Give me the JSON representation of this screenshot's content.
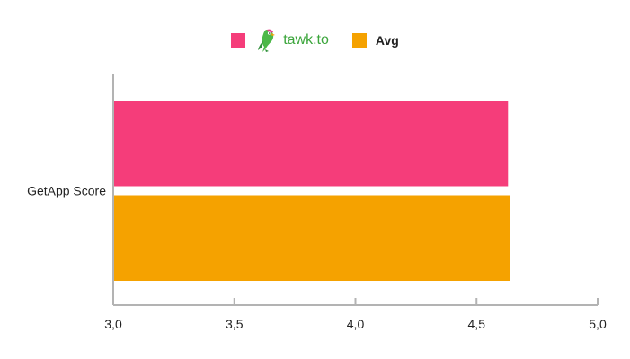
{
  "chart_data": {
    "type": "bar",
    "orientation": "horizontal",
    "categories": [
      "GetApp Score"
    ],
    "series": [
      {
        "name": "tawk.to",
        "values": [
          4.63
        ],
        "color": "#f53d7a"
      },
      {
        "name": "Avg",
        "values": [
          4.64
        ],
        "color": "#f5a200"
      }
    ],
    "xlim": [
      3.0,
      5.0
    ],
    "xticks": [
      "3,0",
      "3,5",
      "4,0",
      "4,5",
      "5,0"
    ],
    "xtick_values": [
      3.0,
      3.5,
      4.0,
      4.5,
      5.0
    ],
    "grid": false,
    "legend_position": "top-center"
  },
  "legend": {
    "logo_icon": "parrot-logo-icon",
    "brand_text": "tawk.to",
    "avg_label": "Avg"
  }
}
